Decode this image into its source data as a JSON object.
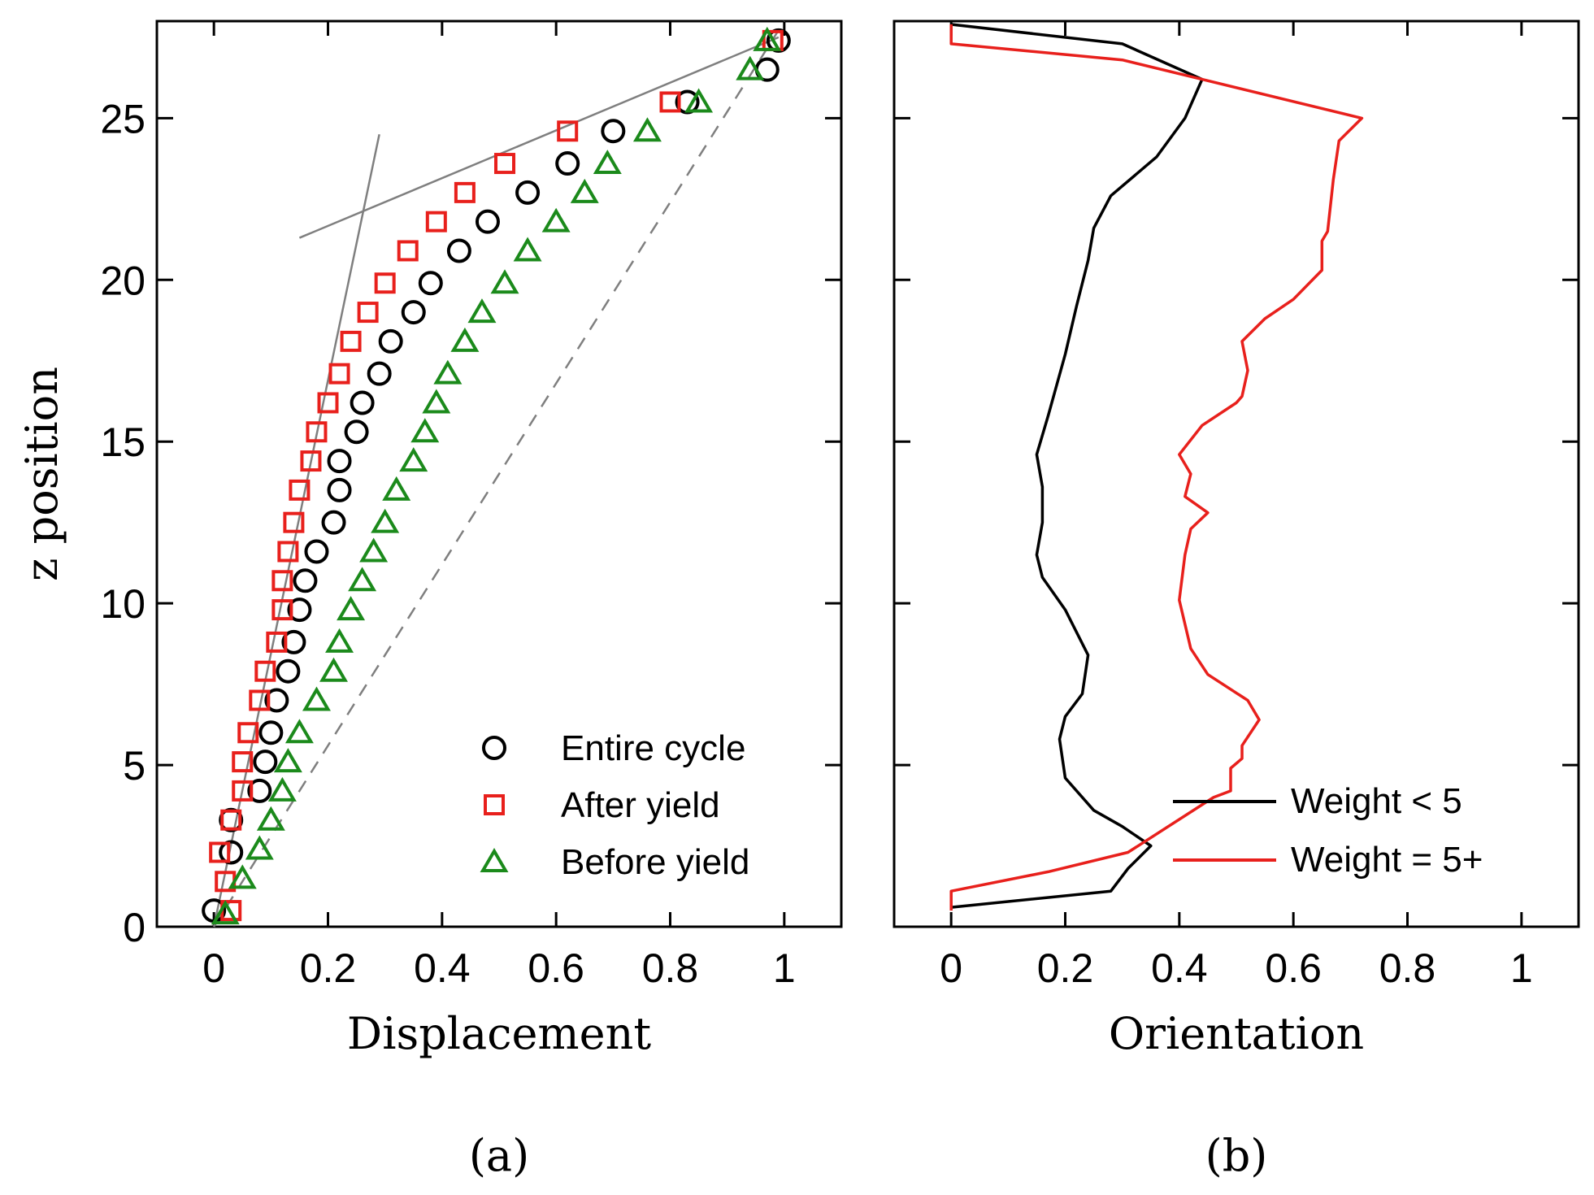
{
  "chart_data": [
    {
      "panel": "a",
      "panel_label": "(a)",
      "type": "scatter",
      "xlabel": "Displacement",
      "ylabel": "z position",
      "xlim": [
        -0.1,
        1.1
      ],
      "ylim": [
        0,
        28
      ],
      "xticks": [
        0,
        0.2,
        0.4,
        0.6,
        0.8,
        1
      ],
      "xtick_labels": [
        "0",
        "0.2",
        "0.4",
        "0.6",
        "0.8",
        "1"
      ],
      "yticks": [
        0,
        5,
        10,
        15,
        20,
        25
      ],
      "ytick_labels": [
        "0",
        "5",
        "10",
        "15",
        "20",
        "25"
      ],
      "legend_position": "bottom-right",
      "series": [
        {
          "name": "Entire cycle",
          "marker": "circle",
          "color": "#000000",
          "points": [
            [
              0.0,
              0.5
            ],
            [
              0.03,
              2.3
            ],
            [
              0.03,
              3.3
            ],
            [
              0.08,
              4.2
            ],
            [
              0.09,
              5.1
            ],
            [
              0.1,
              6.0
            ],
            [
              0.11,
              7.0
            ],
            [
              0.13,
              7.9
            ],
            [
              0.14,
              8.8
            ],
            [
              0.15,
              9.8
            ],
            [
              0.16,
              10.7
            ],
            [
              0.18,
              11.6
            ],
            [
              0.21,
              12.5
            ],
            [
              0.22,
              13.5
            ],
            [
              0.22,
              14.4
            ],
            [
              0.25,
              15.3
            ],
            [
              0.26,
              16.2
            ],
            [
              0.29,
              17.1
            ],
            [
              0.31,
              18.1
            ],
            [
              0.35,
              19.0
            ],
            [
              0.38,
              19.9
            ],
            [
              0.43,
              20.9
            ],
            [
              0.48,
              21.8
            ],
            [
              0.55,
              22.7
            ],
            [
              0.62,
              23.6
            ],
            [
              0.7,
              24.6
            ],
            [
              0.83,
              25.5
            ],
            [
              0.97,
              26.5
            ],
            [
              0.99,
              27.4
            ]
          ]
        },
        {
          "name": "After yield",
          "marker": "square",
          "color": "#e8201c",
          "points": [
            [
              0.03,
              0.5
            ],
            [
              0.02,
              1.4
            ],
            [
              0.01,
              2.3
            ],
            [
              0.03,
              3.3
            ],
            [
              0.05,
              4.2
            ],
            [
              0.05,
              5.1
            ],
            [
              0.06,
              6.0
            ],
            [
              0.08,
              7.0
            ],
            [
              0.09,
              7.9
            ],
            [
              0.11,
              8.8
            ],
            [
              0.12,
              9.8
            ],
            [
              0.12,
              10.7
            ],
            [
              0.13,
              11.6
            ],
            [
              0.14,
              12.5
            ],
            [
              0.15,
              13.5
            ],
            [
              0.17,
              14.4
            ],
            [
              0.18,
              15.3
            ],
            [
              0.2,
              16.2
            ],
            [
              0.22,
              17.1
            ],
            [
              0.24,
              18.1
            ],
            [
              0.27,
              19.0
            ],
            [
              0.3,
              19.9
            ],
            [
              0.34,
              20.9
            ],
            [
              0.39,
              21.8
            ],
            [
              0.44,
              22.7
            ],
            [
              0.51,
              23.6
            ],
            [
              0.62,
              24.6
            ],
            [
              0.8,
              25.5
            ],
            [
              0.98,
              27.4
            ]
          ]
        },
        {
          "name": "Before yield",
          "marker": "triangle",
          "color": "#1b8a1b",
          "points": [
            [
              0.02,
              0.4
            ],
            [
              0.05,
              1.5
            ],
            [
              0.08,
              2.4
            ],
            [
              0.1,
              3.3
            ],
            [
              0.12,
              4.2
            ],
            [
              0.13,
              5.1
            ],
            [
              0.15,
              6.0
            ],
            [
              0.18,
              7.0
            ],
            [
              0.21,
              7.9
            ],
            [
              0.22,
              8.8
            ],
            [
              0.24,
              9.8
            ],
            [
              0.26,
              10.7
            ],
            [
              0.28,
              11.6
            ],
            [
              0.3,
              12.5
            ],
            [
              0.32,
              13.5
            ],
            [
              0.35,
              14.4
            ],
            [
              0.37,
              15.3
            ],
            [
              0.39,
              16.2
            ],
            [
              0.41,
              17.1
            ],
            [
              0.44,
              18.1
            ],
            [
              0.47,
              19.0
            ],
            [
              0.51,
              19.9
            ],
            [
              0.55,
              20.9
            ],
            [
              0.6,
              21.8
            ],
            [
              0.65,
              22.7
            ],
            [
              0.69,
              23.6
            ],
            [
              0.76,
              24.6
            ],
            [
              0.85,
              25.5
            ],
            [
              0.94,
              26.5
            ],
            [
              0.97,
              27.4
            ]
          ]
        }
      ],
      "reference_lines": [
        {
          "name": "fit-lower",
          "style": "solid",
          "color": "#7f7f7f",
          "points": [
            [
              0.0,
              0.0
            ],
            [
              0.29,
              24.5
            ]
          ]
        },
        {
          "name": "fit-upper",
          "style": "solid",
          "color": "#7f7f7f",
          "points": [
            [
              0.15,
              21.3
            ],
            [
              0.99,
              27.5
            ]
          ]
        },
        {
          "name": "linear-profile",
          "style": "dashed",
          "color": "#7f7f7f",
          "points": [
            [
              0.0,
              0.0
            ],
            [
              1.0,
              28.0
            ]
          ]
        }
      ]
    },
    {
      "panel": "b",
      "panel_label": "(b)",
      "type": "line",
      "xlabel": "Orientation",
      "ylabel": "",
      "xlim": [
        -0.1,
        1.1
      ],
      "ylim": [
        0,
        28
      ],
      "xticks": [
        0,
        0.2,
        0.4,
        0.6,
        0.8,
        1
      ],
      "xtick_labels": [
        "0",
        "0.2",
        "0.4",
        "0.6",
        "0.8",
        "1"
      ],
      "yticks": [
        0,
        5,
        10,
        15,
        20,
        25
      ],
      "legend_position": "bottom-right",
      "series": [
        {
          "name": "Weight < 5",
          "color": "#000000",
          "points": [
            [
              0.0,
              0.6
            ],
            [
              0.28,
              1.1
            ],
            [
              0.31,
              1.8
            ],
            [
              0.35,
              2.5
            ],
            [
              0.3,
              3.1
            ],
            [
              0.25,
              3.6
            ],
            [
              0.2,
              4.6
            ],
            [
              0.19,
              5.8
            ],
            [
              0.2,
              6.5
            ],
            [
              0.23,
              7.2
            ],
            [
              0.24,
              8.4
            ],
            [
              0.2,
              9.8
            ],
            [
              0.16,
              10.8
            ],
            [
              0.15,
              11.5
            ],
            [
              0.16,
              12.5
            ],
            [
              0.16,
              13.6
            ],
            [
              0.15,
              14.6
            ],
            [
              0.17,
              15.8
            ],
            [
              0.2,
              17.7
            ],
            [
              0.22,
              19.2
            ],
            [
              0.24,
              20.6
            ],
            [
              0.25,
              21.6
            ],
            [
              0.28,
              22.6
            ],
            [
              0.36,
              23.8
            ],
            [
              0.41,
              25.0
            ],
            [
              0.44,
              26.2
            ],
            [
              0.3,
              27.3
            ],
            [
              0.0,
              27.9
            ]
          ]
        },
        {
          "name": "Weight = 5+",
          "color": "#e8201c",
          "points": [
            [
              0.0,
              0.5
            ],
            [
              0.0,
              1.1
            ],
            [
              0.17,
              1.7
            ],
            [
              0.31,
              2.3
            ],
            [
              0.46,
              4.0
            ],
            [
              0.49,
              4.2
            ],
            [
              0.49,
              4.9
            ],
            [
              0.51,
              5.2
            ],
            [
              0.51,
              5.6
            ],
            [
              0.54,
              6.4
            ],
            [
              0.52,
              7.0
            ],
            [
              0.45,
              7.8
            ],
            [
              0.42,
              8.6
            ],
            [
              0.4,
              10.1
            ],
            [
              0.41,
              11.5
            ],
            [
              0.42,
              12.3
            ],
            [
              0.45,
              12.8
            ],
            [
              0.41,
              13.3
            ],
            [
              0.42,
              14.0
            ],
            [
              0.4,
              14.6
            ],
            [
              0.44,
              15.5
            ],
            [
              0.5,
              16.2
            ],
            [
              0.51,
              16.4
            ],
            [
              0.52,
              17.2
            ],
            [
              0.51,
              18.1
            ],
            [
              0.55,
              18.8
            ],
            [
              0.6,
              19.4
            ],
            [
              0.65,
              20.3
            ],
            [
              0.65,
              21.2
            ],
            [
              0.66,
              21.5
            ],
            [
              0.67,
              23.1
            ],
            [
              0.68,
              24.3
            ],
            [
              0.72,
              25.0
            ],
            [
              0.44,
              26.2
            ],
            [
              0.3,
              26.8
            ],
            [
              0.0,
              27.3
            ],
            [
              0.0,
              27.9
            ]
          ]
        }
      ]
    }
  ]
}
